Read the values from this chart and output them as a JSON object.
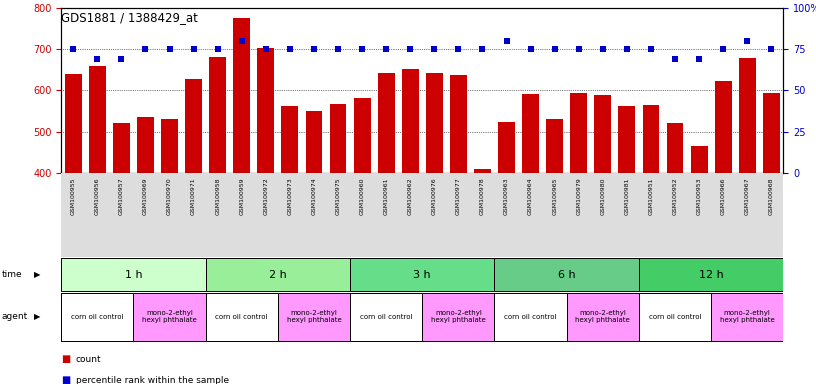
{
  "title": "GDS1881 / 1388429_at",
  "samples": [
    "GSM100955",
    "GSM100956",
    "GSM100957",
    "GSM100969",
    "GSM100970",
    "GSM100971",
    "GSM100958",
    "GSM100959",
    "GSM100972",
    "GSM100973",
    "GSM100974",
    "GSM100975",
    "GSM100960",
    "GSM100961",
    "GSM100962",
    "GSM100976",
    "GSM100977",
    "GSM100978",
    "GSM100963",
    "GSM100964",
    "GSM100965",
    "GSM100979",
    "GSM100980",
    "GSM100981",
    "GSM100951",
    "GSM100952",
    "GSM100953",
    "GSM100966",
    "GSM100967",
    "GSM100968"
  ],
  "counts": [
    640,
    659,
    521,
    535,
    531,
    628,
    681,
    775,
    703,
    562,
    549,
    566,
    582,
    641,
    652,
    641,
    637,
    410,
    522,
    590,
    531,
    594,
    588,
    563,
    565,
    521,
    466,
    623,
    678,
    594
  ],
  "percentiles": [
    75,
    69,
    69,
    75,
    75,
    75,
    75,
    80,
    75,
    75,
    75,
    75,
    75,
    75,
    75,
    75,
    75,
    75,
    80,
    75,
    75,
    75,
    75,
    75,
    75,
    69,
    69,
    75,
    80,
    75
  ],
  "time_groups": [
    {
      "label": "1 h",
      "start": 0,
      "end": 6,
      "color": "#ccffcc"
    },
    {
      "label": "2 h",
      "start": 6,
      "end": 12,
      "color": "#99ee99"
    },
    {
      "label": "3 h",
      "start": 12,
      "end": 18,
      "color": "#66dd88"
    },
    {
      "label": "6 h",
      "start": 18,
      "end": 24,
      "color": "#66cc88"
    },
    {
      "label": "12 h",
      "start": 24,
      "end": 30,
      "color": "#44cc66"
    }
  ],
  "agent_groups": [
    {
      "label": "corn oil control",
      "start": 0,
      "end": 3,
      "color": "#ffffff"
    },
    {
      "label": "mono-2-ethyl\nhexyl phthalate",
      "start": 3,
      "end": 6,
      "color": "#ff99ff"
    },
    {
      "label": "corn oil control",
      "start": 6,
      "end": 9,
      "color": "#ffffff"
    },
    {
      "label": "mono-2-ethyl\nhexyl phthalate",
      "start": 9,
      "end": 12,
      "color": "#ff99ff"
    },
    {
      "label": "corn oil control",
      "start": 12,
      "end": 15,
      "color": "#ffffff"
    },
    {
      "label": "mono-2-ethyl\nhexyl phthalate",
      "start": 15,
      "end": 18,
      "color": "#ff99ff"
    },
    {
      "label": "corn oil control",
      "start": 18,
      "end": 21,
      "color": "#ffffff"
    },
    {
      "label": "mono-2-ethyl\nhexyl phthalate",
      "start": 21,
      "end": 24,
      "color": "#ff99ff"
    },
    {
      "label": "corn oil control",
      "start": 24,
      "end": 27,
      "color": "#ffffff"
    },
    {
      "label": "mono-2-ethyl\nhexyl phthalate",
      "start": 27,
      "end": 30,
      "color": "#ff99ff"
    }
  ],
  "ylim_left": [
    400,
    800
  ],
  "ylim_right": [
    0,
    100
  ],
  "yticks_left": [
    400,
    500,
    600,
    700,
    800
  ],
  "yticks_right": [
    0,
    25,
    50,
    75,
    100
  ],
  "ytick_labels_right": [
    "0",
    "25",
    "50",
    "75",
    "100%"
  ],
  "bar_color": "#cc0000",
  "dot_color": "#0000cc",
  "xtick_bg_color": "#cccccc",
  "background_color": "#ffffff"
}
